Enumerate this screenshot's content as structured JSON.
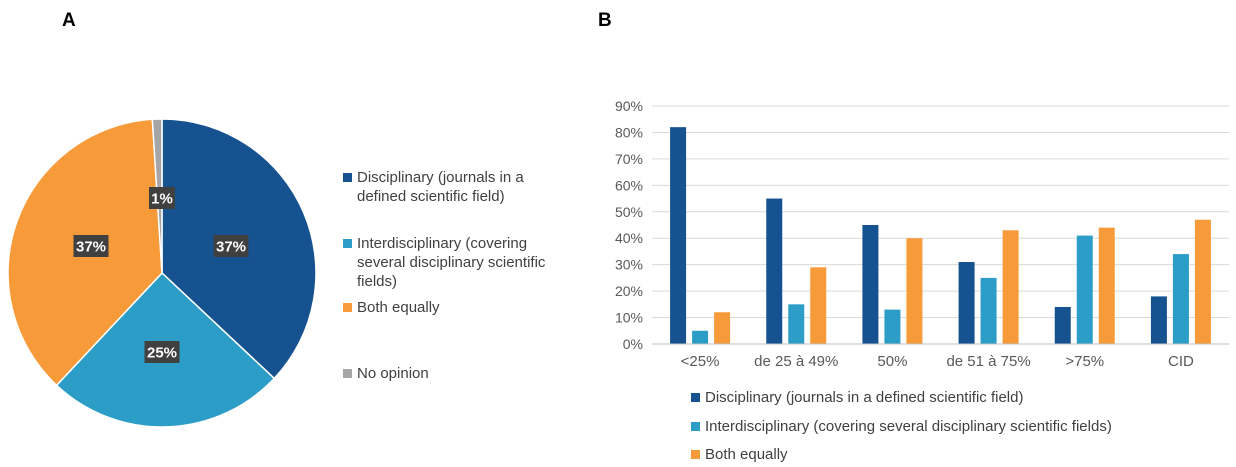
{
  "panels": {
    "a": "A",
    "b": "B"
  },
  "colors": {
    "disciplinary": "#15528f",
    "interdisciplinary": "#2b9dc6",
    "both": "#f79a39",
    "no_opinion": "#a6a6a6",
    "label_bg": "#404040"
  },
  "chart_data": [
    {
      "type": "pie",
      "labels": [
        "Disciplinary (journals in a defined scientific field)",
        "Interdisciplinary (covering several disciplinary scientific fields)",
        "Both equally",
        "No opinion"
      ],
      "values": [
        37,
        25,
        37,
        1
      ],
      "data_labels": [
        "37%",
        "25%",
        "37%",
        "1%"
      ],
      "legend": [
        "Disciplinary (journals in a defined scientific field)",
        "Interdisciplinary (covering several disciplinary scientific fields)",
        "Both equally",
        "No opinion"
      ],
      "legend_position": "right"
    },
    {
      "type": "bar",
      "categories": [
        "<25%",
        "de 25 à 49%",
        "50%",
        "de 51 à 75%",
        ">75%",
        "CID"
      ],
      "series": [
        {
          "name": "Disciplinary (journals in a defined scientific field)",
          "values": [
            82,
            55,
            45,
            31,
            14,
            18
          ]
        },
        {
          "name": "Interdisciplinary (covering several disciplinary scientific fields)",
          "values": [
            5,
            15,
            13,
            25,
            41,
            34
          ]
        },
        {
          "name": "Both equally",
          "values": [
            12,
            29,
            40,
            43,
            44,
            47
          ]
        }
      ],
      "ylim": [
        0,
        90
      ],
      "yticks": [
        "0%",
        "10%",
        "20%",
        "30%",
        "40%",
        "50%",
        "60%",
        "70%",
        "80%",
        "90%"
      ],
      "grid": true,
      "legend_position": "bottom"
    }
  ]
}
